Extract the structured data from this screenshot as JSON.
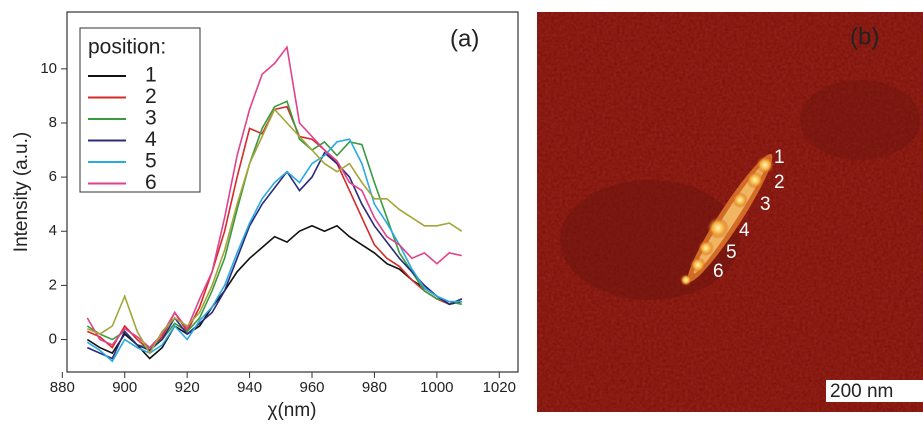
{
  "chart_data": {
    "type": "line",
    "x_label": "χ(nm)",
    "y_label": "Intensity (a.u.)",
    "annotation": "(a)",
    "legend_title": "position:",
    "x": [
      888,
      892,
      896,
      900,
      904,
      908,
      912,
      916,
      920,
      924,
      928,
      932,
      936,
      940,
      944,
      948,
      952,
      956,
      960,
      964,
      968,
      972,
      976,
      980,
      984,
      988,
      992,
      996,
      1000,
      1004,
      1008
    ],
    "series": [
      {
        "name": "1",
        "color": "#111111",
        "values": [
          0.0,
          -0.3,
          -0.5,
          0.2,
          -0.2,
          -0.7,
          -0.3,
          0.5,
          0.2,
          0.5,
          1.2,
          1.8,
          2.5,
          3.0,
          3.4,
          3.8,
          3.6,
          4.0,
          4.2,
          4.0,
          4.2,
          3.8,
          3.5,
          3.2,
          2.8,
          2.6,
          2.2,
          1.9,
          1.6,
          1.3,
          1.4
        ]
      },
      {
        "name": "2",
        "color": "#d42a2a",
        "values": [
          0.3,
          0.1,
          -0.3,
          0.5,
          0.0,
          -0.4,
          0.1,
          1.0,
          0.3,
          1.2,
          2.5,
          4.0,
          6.0,
          7.8,
          7.6,
          8.5,
          8.6,
          7.5,
          7.4,
          7.0,
          6.5,
          5.5,
          4.5,
          3.5,
          3.0,
          2.7,
          2.2,
          1.8,
          1.5,
          1.3,
          1.5
        ]
      },
      {
        "name": "3",
        "color": "#3a9a3e",
        "values": [
          0.5,
          0.2,
          0.0,
          0.3,
          -0.2,
          -0.3,
          0.0,
          0.6,
          0.3,
          0.8,
          1.8,
          3.0,
          4.8,
          6.5,
          7.8,
          8.6,
          8.8,
          7.4,
          7.0,
          7.3,
          6.8,
          7.3,
          7.2,
          5.8,
          4.5,
          3.2,
          2.5,
          1.8,
          1.5,
          1.4,
          1.3
        ]
      },
      {
        "name": "4",
        "color": "#2b2b7c",
        "values": [
          -0.3,
          -0.5,
          -0.7,
          0.3,
          -0.2,
          -0.4,
          0.0,
          0.8,
          0.2,
          0.6,
          1.0,
          1.8,
          3.0,
          4.2,
          5.0,
          5.6,
          6.2,
          5.5,
          6.0,
          6.9,
          6.5,
          6.0,
          5.0,
          4.2,
          3.6,
          3.0,
          2.5,
          2.0,
          1.6,
          1.3,
          1.5
        ]
      },
      {
        "name": "5",
        "color": "#2aa9e2",
        "values": [
          -0.1,
          -0.4,
          -0.8,
          0.0,
          -0.3,
          -0.5,
          -0.2,
          0.5,
          0.0,
          0.7,
          1.2,
          2.0,
          3.2,
          4.3,
          5.2,
          5.8,
          6.2,
          5.8,
          6.5,
          6.8,
          7.3,
          7.4,
          6.5,
          5.0,
          4.3,
          3.5,
          2.6,
          1.9,
          1.6,
          1.4,
          1.4
        ]
      },
      {
        "name": "6",
        "color": "#e0428c",
        "values": [
          0.8,
          0.0,
          -0.2,
          0.4,
          0.1,
          -0.3,
          0.2,
          1.0,
          0.4,
          1.5,
          2.5,
          4.5,
          6.8,
          8.5,
          9.8,
          10.2,
          10.8,
          8.0,
          7.5,
          7.0,
          6.6,
          5.8,
          5.5,
          4.5,
          3.8,
          3.5,
          3.0,
          3.2,
          2.8,
          3.2,
          3.1
        ]
      },
      {
        "name": null,
        "color": "#a5a53a",
        "values": [
          0.4,
          0.2,
          0.5,
          1.6,
          0.3,
          -0.5,
          0.3,
          0.8,
          0.5,
          1.0,
          2.0,
          3.3,
          5.0,
          6.5,
          7.5,
          8.5,
          8.0,
          7.5,
          7.0,
          6.5,
          6.2,
          6.5,
          5.8,
          5.2,
          5.2,
          4.8,
          4.5,
          4.2,
          4.2,
          4.3,
          4.0
        ]
      }
    ],
    "xlim": [
      881.5,
      1026
    ],
    "ylim": [
      -1.2,
      12.1
    ],
    "xticks": [
      880,
      900,
      920,
      940,
      960,
      980,
      1000,
      1020
    ],
    "yticks": [
      0,
      2,
      4,
      6,
      8,
      10
    ]
  },
  "image": {
    "panel_label": "(b)",
    "point_labels": [
      "1",
      "2",
      "3",
      "4",
      "5",
      "6"
    ],
    "scale_bar": "200 nm"
  }
}
